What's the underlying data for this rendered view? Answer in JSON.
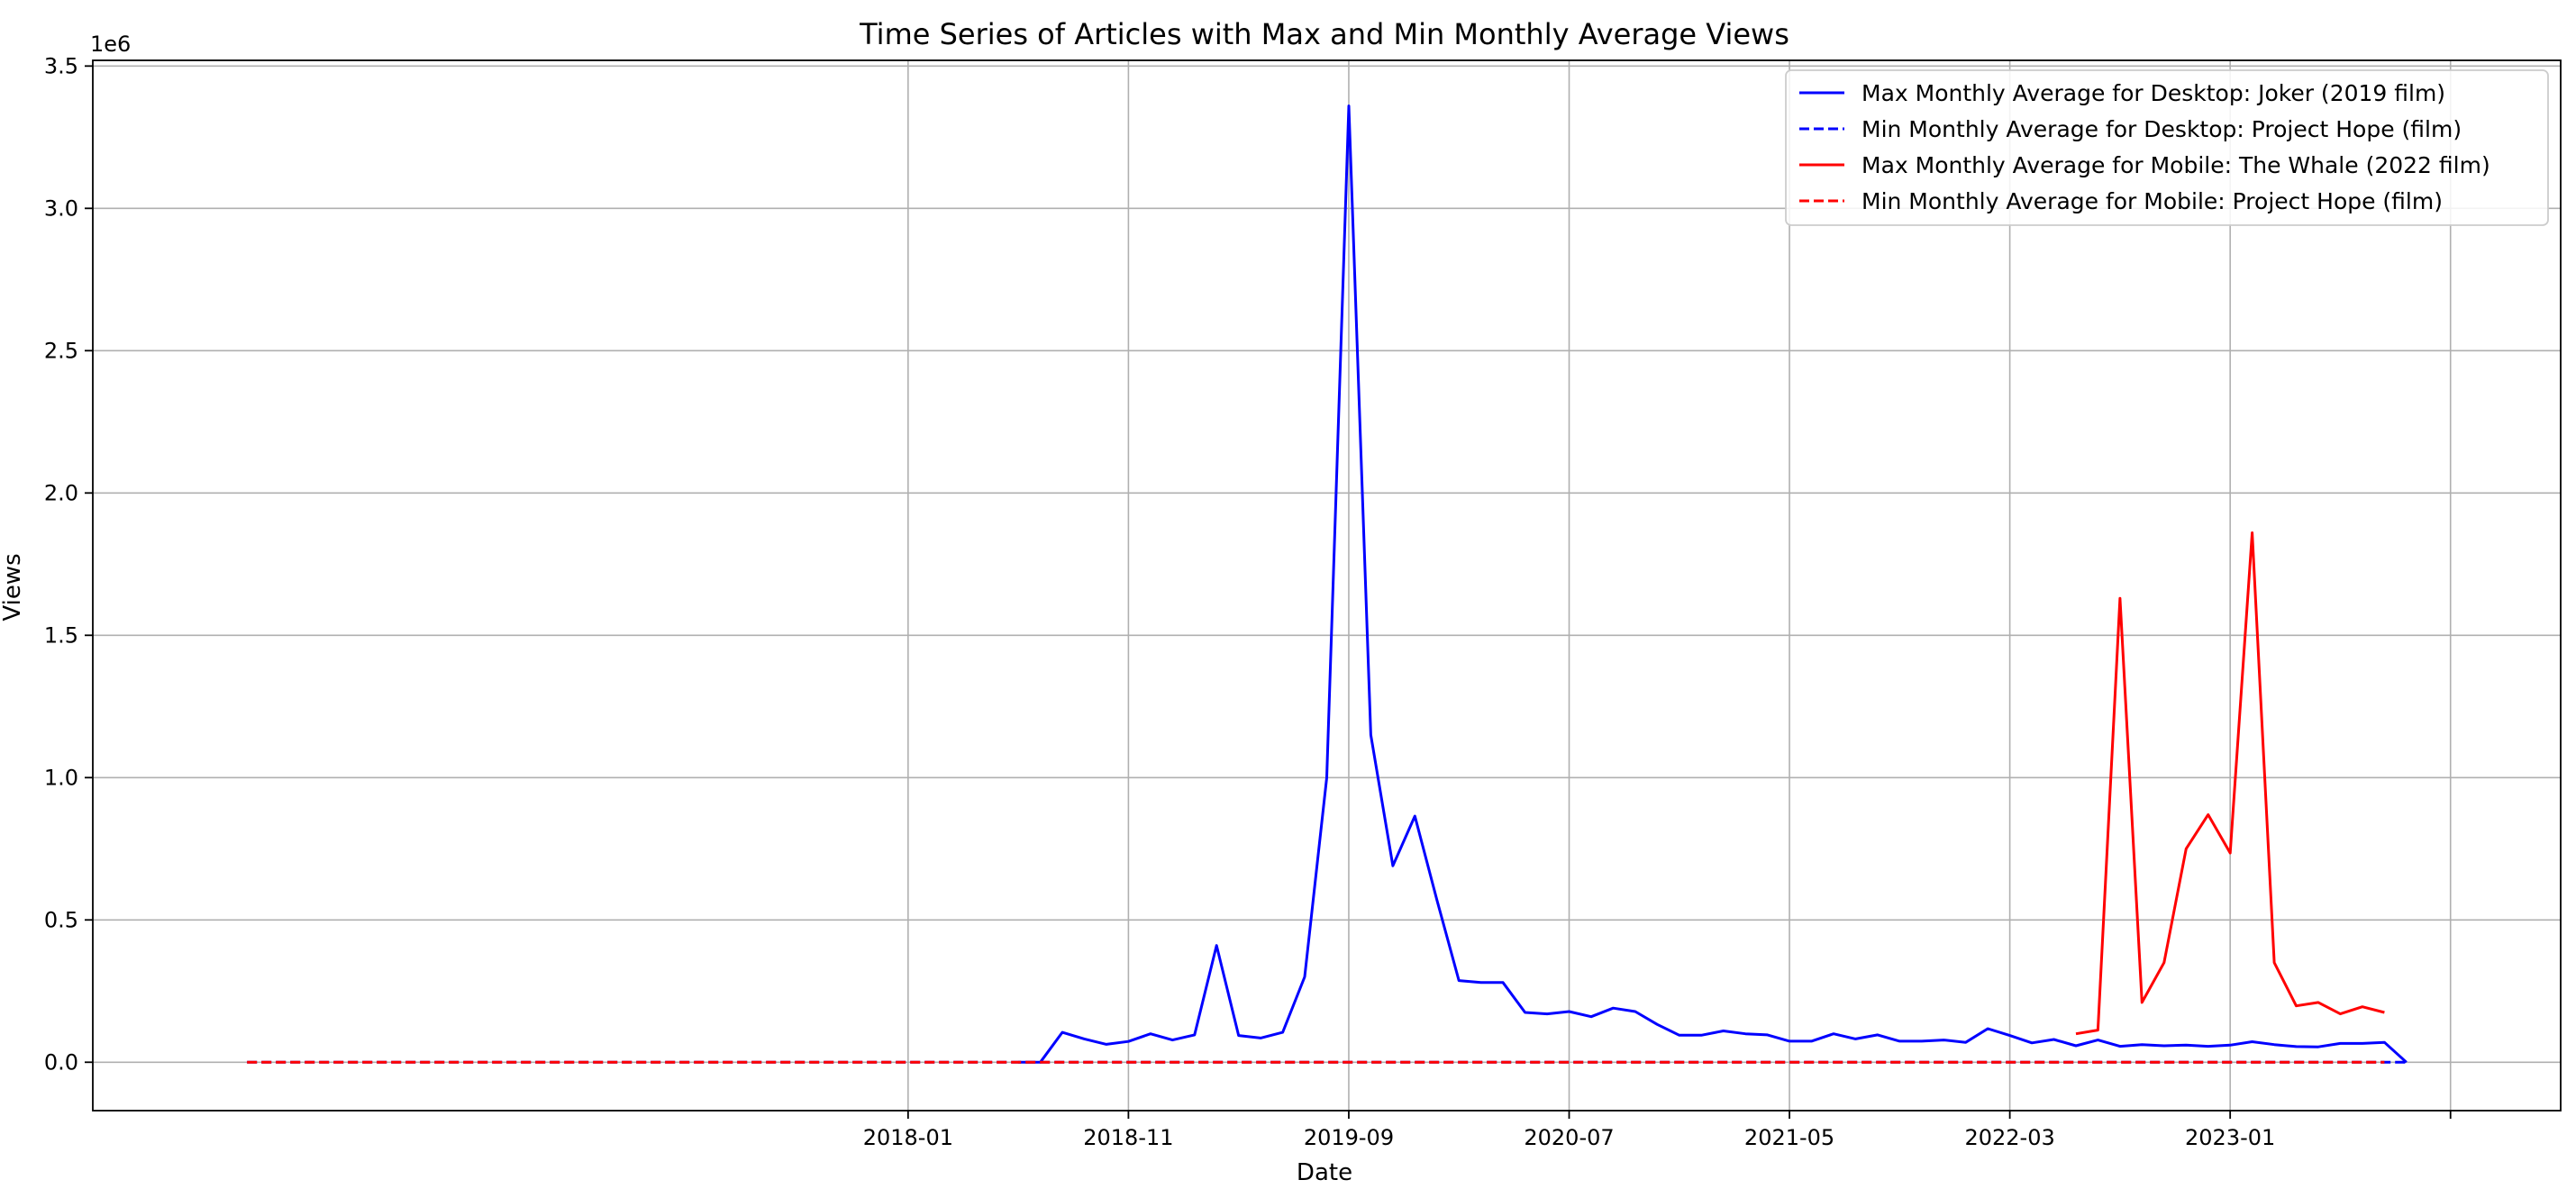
{
  "chart_data": {
    "type": "line",
    "title": "Time Series of Articles with Max and Min Monthly Average Views",
    "xlabel": "Date",
    "ylabel": "Views",
    "y_offset_label": "1e6",
    "ylim": [
      -0.17,
      3.52
    ],
    "xlim": [
      "2014-12",
      "2024-04"
    ],
    "x_ticks": [
      "2018-01",
      "2018-11",
      "2019-09",
      "2020-07",
      "2021-05",
      "2022-03",
      "2023-01",
      ""
    ],
    "x_tick_dates": [
      "2018-01",
      "2018-11",
      "2019-09",
      "2020-07",
      "2021-05",
      "2022-03",
      "2023-01",
      "2023-11"
    ],
    "y_ticks": [
      "0.0",
      "0.5",
      "1.0",
      "1.5",
      "2.0",
      "2.5",
      "3.0",
      "3.5"
    ],
    "y_tick_values": [
      0,
      0.5,
      1.0,
      1.5,
      2.0,
      2.5,
      3.0,
      3.5
    ],
    "grid": true,
    "legend_position": "top-right",
    "series": [
      {
        "name": "Max Monthly Average for Desktop: Joker (2019 film)",
        "color": "#0000ff",
        "dash": "solid",
        "points": [
          [
            "2018-06",
            0
          ],
          [
            "2018-07",
            0
          ],
          [
            "2018-08",
            0.105
          ],
          [
            "2018-09",
            0.082
          ],
          [
            "2018-10",
            0.063
          ],
          [
            "2018-11",
            0.073
          ],
          [
            "2018-12",
            0.1
          ],
          [
            "2019-01",
            0.078
          ],
          [
            "2019-02",
            0.096
          ],
          [
            "2019-03",
            0.41
          ],
          [
            "2019-04",
            0.094
          ],
          [
            "2019-05",
            0.085
          ],
          [
            "2019-06",
            0.105
          ],
          [
            "2019-07",
            0.3
          ],
          [
            "2019-08",
            1.0
          ],
          [
            "2019-09",
            3.36
          ],
          [
            "2019-10",
            1.15
          ],
          [
            "2019-11",
            0.69
          ],
          [
            "2019-12",
            0.865
          ],
          [
            "2020-01",
            0.57
          ],
          [
            "2020-02",
            0.287
          ],
          [
            "2020-03",
            0.28
          ],
          [
            "2020-04",
            0.28
          ],
          [
            "2020-05",
            0.175
          ],
          [
            "2020-06",
            0.17
          ],
          [
            "2020-07",
            0.178
          ],
          [
            "2020-08",
            0.16
          ],
          [
            "2020-09",
            0.19
          ],
          [
            "2020-10",
            0.178
          ],
          [
            "2020-11",
            0.133
          ],
          [
            "2020-12",
            0.095
          ],
          [
            "2021-01",
            0.095
          ],
          [
            "2021-02",
            0.11
          ],
          [
            "2021-03",
            0.1
          ],
          [
            "2021-04",
            0.096
          ],
          [
            "2021-05",
            0.074
          ],
          [
            "2021-06",
            0.074
          ],
          [
            "2021-07",
            0.1
          ],
          [
            "2021-08",
            0.082
          ],
          [
            "2021-09",
            0.096
          ],
          [
            "2021-10",
            0.074
          ],
          [
            "2021-11",
            0.074
          ],
          [
            "2021-12",
            0.078
          ],
          [
            "2022-01",
            0.07
          ],
          [
            "2022-02",
            0.118
          ],
          [
            "2022-03",
            0.094
          ],
          [
            "2022-04",
            0.068
          ],
          [
            "2022-05",
            0.08
          ],
          [
            "2022-06",
            0.058
          ],
          [
            "2022-07",
            0.078
          ],
          [
            "2022-08",
            0.056
          ],
          [
            "2022-09",
            0.062
          ],
          [
            "2022-10",
            0.058
          ],
          [
            "2022-11",
            0.06
          ],
          [
            "2022-12",
            0.056
          ],
          [
            "2023-01",
            0.06
          ],
          [
            "2023-02",
            0.072
          ],
          [
            "2023-03",
            0.062
          ],
          [
            "2023-04",
            0.055
          ],
          [
            "2023-05",
            0.054
          ],
          [
            "2023-06",
            0.066
          ],
          [
            "2023-07",
            0.066
          ],
          [
            "2023-08",
            0.07
          ],
          [
            "2023-09",
            0
          ]
        ]
      },
      {
        "name": "Min Monthly Average for Desktop: Project Hope (film)",
        "color": "#0000ff",
        "dash": "dashed",
        "points": [
          [
            "2015-07",
            0
          ],
          [
            "2023-09",
            0
          ]
        ]
      },
      {
        "name": "Max Monthly Average for Mobile: The Whale (2022 film)",
        "color": "#ff0000",
        "dash": "solid",
        "points": [
          [
            "2022-06",
            0.1
          ],
          [
            "2022-07",
            0.113
          ],
          [
            "2022-08",
            1.63
          ],
          [
            "2022-09",
            0.21
          ],
          [
            "2022-10",
            0.35
          ],
          [
            "2022-11",
            0.75
          ],
          [
            "2022-12",
            0.87
          ],
          [
            "2023-01",
            0.735
          ],
          [
            "2023-02",
            1.86
          ],
          [
            "2023-03",
            0.35
          ],
          [
            "2023-04",
            0.198
          ],
          [
            "2023-05",
            0.21
          ],
          [
            "2023-06",
            0.17
          ],
          [
            "2023-07",
            0.195
          ],
          [
            "2023-08",
            0.175
          ]
        ]
      },
      {
        "name": "Min Monthly Average for Mobile: Project Hope (film)",
        "color": "#ff0000",
        "dash": "dashed",
        "points": [
          [
            "2015-07",
            0
          ],
          [
            "2023-08",
            0
          ]
        ]
      }
    ]
  }
}
